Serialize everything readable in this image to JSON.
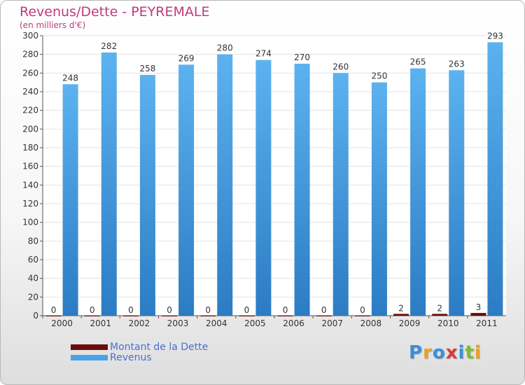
{
  "chart_data": {
    "type": "bar",
    "title": "Revenus/Dette - PEYREMALE",
    "subtitle": "(en milliers d'€)",
    "categories": [
      "2000",
      "2001",
      "2002",
      "2003",
      "2004",
      "2005",
      "2006",
      "2007",
      "2008",
      "2009",
      "2010",
      "2011"
    ],
    "series": [
      {
        "name": "Montant de la Dette",
        "color": "#6b0c0c",
        "values": [
          0,
          0,
          0,
          0,
          0,
          0,
          0,
          0,
          0,
          2,
          2,
          3
        ]
      },
      {
        "name": "Revenus",
        "color": "#4aa3e8",
        "values": [
          248,
          282,
          258,
          269,
          280,
          274,
          270,
          260,
          250,
          265,
          263,
          293
        ]
      }
    ],
    "ylim": [
      0,
      300
    ],
    "yticks": [
      0,
      20,
      40,
      60,
      80,
      100,
      120,
      140,
      160,
      180,
      200,
      220,
      240,
      260,
      280,
      300
    ],
    "grid": true,
    "legend": "bottom-left"
  },
  "logo": {
    "text": "Proxiti",
    "letters": [
      {
        "ch": "P",
        "color": "#3a8fd8"
      },
      {
        "ch": "r",
        "color": "#e8a020"
      },
      {
        "ch": "o",
        "color": "#3a8fd8"
      },
      {
        "ch": "x",
        "color": "#d83a3a"
      },
      {
        "ch": "i",
        "color": "#3a8fd8"
      },
      {
        "ch": "t",
        "color": "#7bbf2a"
      },
      {
        "ch": "i",
        "color": "#e8a020"
      }
    ]
  }
}
